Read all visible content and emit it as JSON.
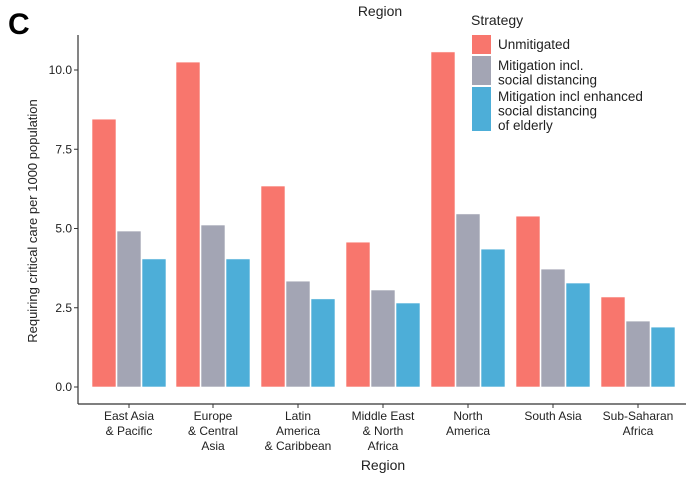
{
  "panel_label": "C",
  "top_partial_label": "Region",
  "chart_data": {
    "type": "bar",
    "title": "",
    "xlabel": "Region",
    "ylabel": "Requiring critical care per 1000 population",
    "ylim": [
      -0.5,
      11.2
    ],
    "yticks": [
      "0.0",
      "2.5",
      "5.0",
      "7.5",
      "10.0"
    ],
    "ytick_values": [
      0,
      2.5,
      5,
      7.5,
      10
    ],
    "grid": false,
    "legend_title": "Strategy",
    "legend_placement": "top-right",
    "categories": [
      [
        "East Asia",
        "& Pacific"
      ],
      [
        "Europe",
        "& Central",
        "Asia"
      ],
      [
        "Latin",
        "America",
        "& Caribbean"
      ],
      [
        "Middle East",
        "& North",
        "Africa"
      ],
      [
        "North",
        "America"
      ],
      [
        "South Asia"
      ],
      [
        "Sub-Saharan",
        "Africa"
      ]
    ],
    "series": [
      {
        "name": [
          "Unmitigated"
        ],
        "color": "#F8766D",
        "values": [
          8.45,
          10.25,
          6.34,
          4.57,
          10.57,
          5.39,
          2.84
        ]
      },
      {
        "name": [
          "Mitigation incl.",
          " social distancing"
        ],
        "color": "#A3A5B4",
        "values": [
          4.92,
          5.11,
          3.34,
          3.06,
          5.46,
          3.72,
          2.08
        ]
      },
      {
        "name": [
          "Mitigation incl enhanced",
          "social distancing",
          "of elderly"
        ],
        "color": "#4DAED8",
        "values": [
          4.04,
          4.04,
          2.78,
          2.65,
          4.35,
          3.28,
          1.89
        ]
      }
    ]
  }
}
